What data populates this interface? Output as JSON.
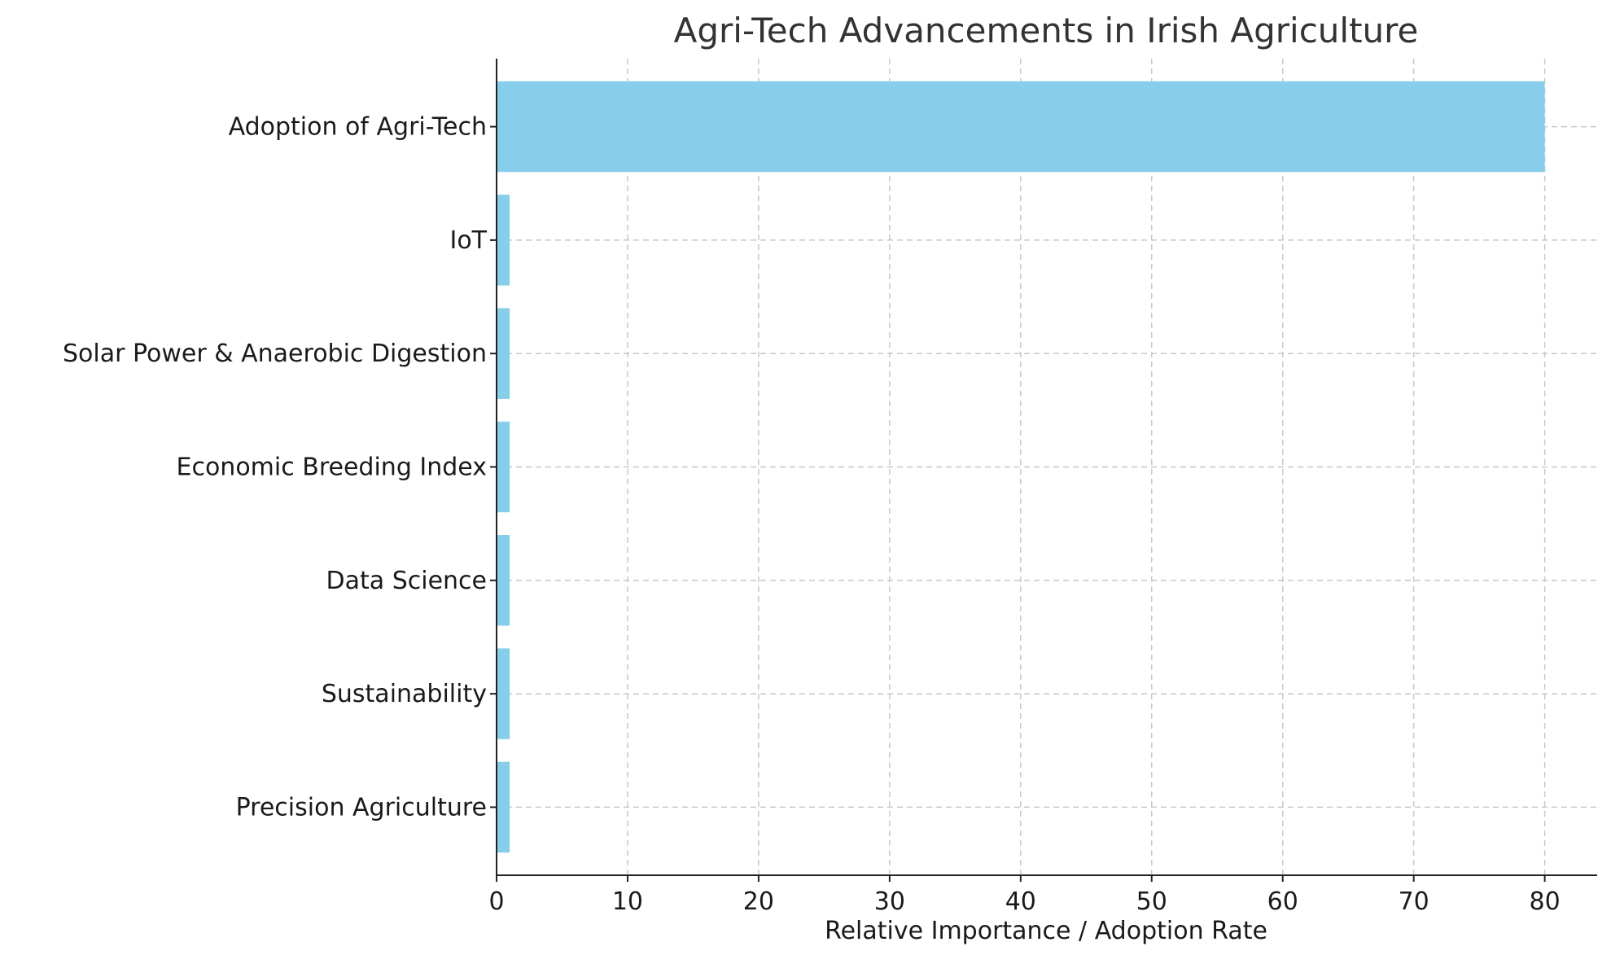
{
  "chart_data": {
    "type": "bar",
    "orientation": "horizontal",
    "title": "Agri-Tech Advancements in Irish Agriculture",
    "xlabel": "Relative Importance / Adoption Rate",
    "ylabel": "",
    "categories": [
      "Precision Agriculture",
      "Sustainability",
      "Data Science",
      "Economic Breeding Index",
      "Solar Power & Anaerobic Digestion",
      "IoT",
      "Adoption of Agri-Tech"
    ],
    "values": [
      1,
      1,
      1,
      1,
      1,
      1,
      80
    ],
    "xlim": [
      0,
      84
    ],
    "xticks": [
      0,
      10,
      20,
      30,
      40,
      50,
      60,
      70,
      80
    ],
    "xtick_labels": [
      "0",
      "10",
      "20",
      "30",
      "40",
      "50",
      "60",
      "70",
      "80"
    ],
    "grid": true,
    "bar_color": "#87ceeb"
  }
}
